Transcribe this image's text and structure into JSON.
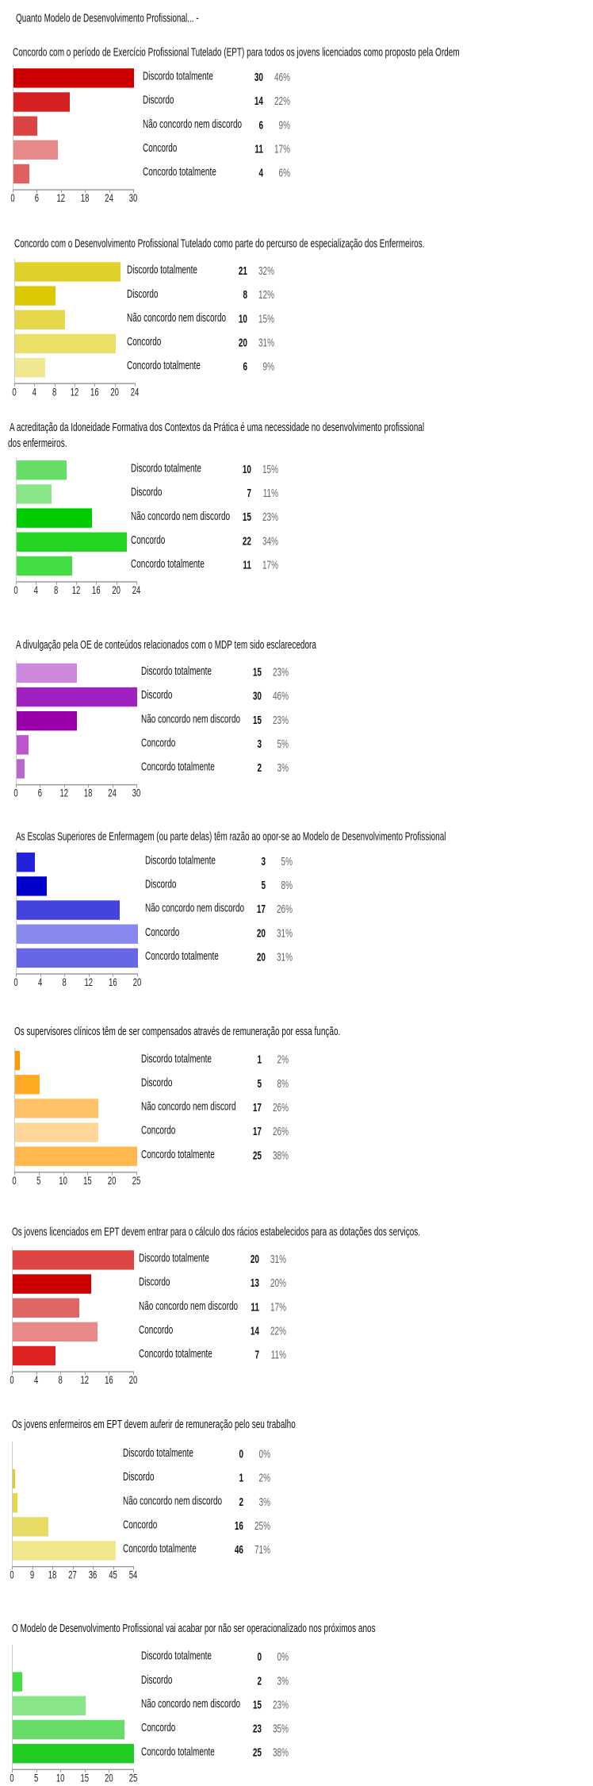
{
  "header": "Quanto Modelo de Desenvolvimento Profissional... -",
  "categories": [
    "Discordo totalmente",
    "Discordo",
    "Não concordo nem discordo",
    "Concordo",
    "Concordo totalmente"
  ],
  "chart_data": [
    {
      "type": "bar",
      "orientation": "horizontal",
      "title": [
        "Concordo com o período de Exercício Profissional Tutelado (EPT) para todos os jovens licenciados como proposto pela Ordem"
      ],
      "categories": [
        "Discordo totalmente",
        "Discordo",
        "Não concordo nem discordo",
        "Concordo",
        "Concordo totalmente"
      ],
      "values": [
        30,
        14,
        6,
        11,
        4
      ],
      "percents": [
        "46%",
        "22%",
        "9%",
        "17%",
        "6%"
      ],
      "xlim": [
        0,
        30
      ],
      "ticks": [
        0,
        6,
        12,
        18,
        24,
        30
      ],
      "colors": [
        "#cc0000",
        "#d42020",
        "#dc4444",
        "#e88a8a",
        "#e06060"
      ]
    },
    {
      "type": "bar",
      "orientation": "horizontal",
      "title": [
        "Concordo com o Desenvolvimento Profissional Tutelado como parte do percurso de especialização dos Enfermeiros."
      ],
      "categories": [
        "Discordo totalmente",
        "Discordo",
        "Não concordo nem discordo",
        "Concordo",
        "Concordo totalmente"
      ],
      "values": [
        21,
        8,
        10,
        20,
        6
      ],
      "percents": [
        "32%",
        "12%",
        "15%",
        "31%",
        "9%"
      ],
      "xlim": [
        0,
        24
      ],
      "ticks": [
        0,
        4,
        8,
        12,
        16,
        20,
        24
      ],
      "colors": [
        "#e2d02a",
        "#dcc800",
        "#e6d84a",
        "#ebe066",
        "#f0e890"
      ]
    },
    {
      "type": "bar",
      "orientation": "horizontal",
      "title": [
        "A acreditação da Idoneidade Formativa dos Contextos da Prática é uma necessidade no desenvolvimento profissional",
        "dos  enfermeiros."
      ],
      "categories": [
        "Discordo totalmente",
        "Discordo",
        "Não concordo nem discordo",
        "Concordo",
        "Concordo totalmente"
      ],
      "values": [
        10,
        7,
        15,
        22,
        11
      ],
      "percents": [
        "15%",
        "11%",
        "23%",
        "34%",
        "17%"
      ],
      "xlim": [
        0,
        24
      ],
      "ticks": [
        0,
        4,
        8,
        12,
        16,
        20,
        24
      ],
      "colors": [
        "#66dd66",
        "#88e688",
        "#00cc00",
        "#22d622",
        "#44dd44"
      ]
    },
    {
      "type": "bar",
      "orientation": "horizontal",
      "title": [
        "A divulgação pela OE de conteúdos relacionados com o MDP tem sido esclarecedora"
      ],
      "categories": [
        "Discordo totalmente",
        "Discordo",
        "Não concordo nem discordo",
        "Concordo",
        "Concordo totalmente"
      ],
      "values": [
        15,
        30,
        15,
        3,
        2
      ],
      "percents": [
        "23%",
        "46%",
        "23%",
        "5%",
        "3%"
      ],
      "xlim": [
        0,
        30
      ],
      "ticks": [
        0,
        6,
        12,
        18,
        24,
        30
      ],
      "colors": [
        "#cc88dd",
        "#a020c0",
        "#9900aa",
        "#bb55cc",
        "#bb66cc"
      ]
    },
    {
      "type": "bar",
      "orientation": "horizontal",
      "title": [
        "As Escolas Superiores de Enfermagem (ou parte delas) têm razão ao opor-se ao Modelo de Desenvolvimento Profissional"
      ],
      "categories": [
        "Discordo totalmente",
        "Discordo",
        "Não concordo nem discordo",
        "Concordo",
        "Concordo totalmente"
      ],
      "values": [
        3,
        5,
        17,
        20,
        20
      ],
      "percents": [
        "5%",
        "8%",
        "26%",
        "31%",
        "31%"
      ],
      "xlim": [
        0,
        20
      ],
      "ticks": [
        0,
        4,
        8,
        12,
        16,
        20
      ],
      "colors": [
        "#2222dd",
        "#0000cc",
        "#4444dd",
        "#8888ee",
        "#6666e6"
      ]
    },
    {
      "type": "bar",
      "orientation": "horizontal",
      "title": [
        "Os supervisores clínicos têm de ser compensados através de remuneração por essa função."
      ],
      "categories": [
        "Discordo totalmente",
        "Discordo",
        "Não concordo nem discord",
        "Concordo",
        "Concordo totalmente"
      ],
      "values": [
        1,
        5,
        17,
        17,
        25
      ],
      "percents": [
        "2%",
        "8%",
        "26%",
        "26%",
        "38%"
      ],
      "xlim": [
        0,
        25
      ],
      "ticks": [
        0,
        5,
        10,
        15,
        20,
        25
      ],
      "colors": [
        "#ff9900",
        "#ffaa22",
        "#ffc266",
        "#ffd699",
        "#ffb84d"
      ]
    },
    {
      "type": "bar",
      "orientation": "horizontal",
      "title": [
        "Os jovens licenciados em EPT devem entrar para o cálculo dos rácios estabelecidos para as dotações dos serviços."
      ],
      "categories": [
        "Discordo totalmente",
        "Discordo",
        "Não concordo nem discordo",
        "Concordo",
        "Concordo totalmente"
      ],
      "values": [
        20,
        13,
        11,
        14,
        7
      ],
      "percents": [
        "31%",
        "20%",
        "17%",
        "22%",
        "11%"
      ],
      "xlim": [
        0,
        20
      ],
      "ticks": [
        0,
        4,
        8,
        12,
        16,
        20
      ],
      "colors": [
        "#dd4444",
        "#cc0000",
        "#e06666",
        "#e88888",
        "#dd2222"
      ]
    },
    {
      "type": "bar",
      "orientation": "horizontal",
      "title": [
        "Os jovens enfermeiros em EPT devem auferir de remuneração pelo seu trabalho"
      ],
      "categories": [
        "Discordo totalmente",
        "Discordo",
        "Não concordo nem discordo",
        "Concordo",
        "Concordo totalmente"
      ],
      "values": [
        0,
        1,
        2,
        16,
        46
      ],
      "percents": [
        "0%",
        "2%",
        "3%",
        "25%",
        "71%"
      ],
      "xlim": [
        0,
        54
      ],
      "ticks": [
        0,
        9,
        18,
        27,
        36,
        45,
        54
      ],
      "colors": [
        "#e2d02a",
        "#ddcc33",
        "#e6d84a",
        "#e8dc66",
        "#f0e68c"
      ]
    },
    {
      "type": "bar",
      "orientation": "horizontal",
      "title": [
        "O Modelo de Desenvolvimento Profissional vai acabar por não ser operacionalizado nos próximos anos"
      ],
      "categories": [
        "Discordo totalmente",
        "Discordo",
        "Não concordo nem discordo",
        "Concordo",
        "Concordo totalmente"
      ],
      "values": [
        0,
        2,
        15,
        23,
        25
      ],
      "percents": [
        "0%",
        "3%",
        "23%",
        "35%",
        "38%"
      ],
      "xlim": [
        0,
        25
      ],
      "ticks": [
        0,
        5,
        10,
        15,
        20,
        25
      ],
      "colors": [
        "#66dd66",
        "#44dd44",
        "#88e688",
        "#66dd66",
        "#22cc22"
      ]
    }
  ]
}
